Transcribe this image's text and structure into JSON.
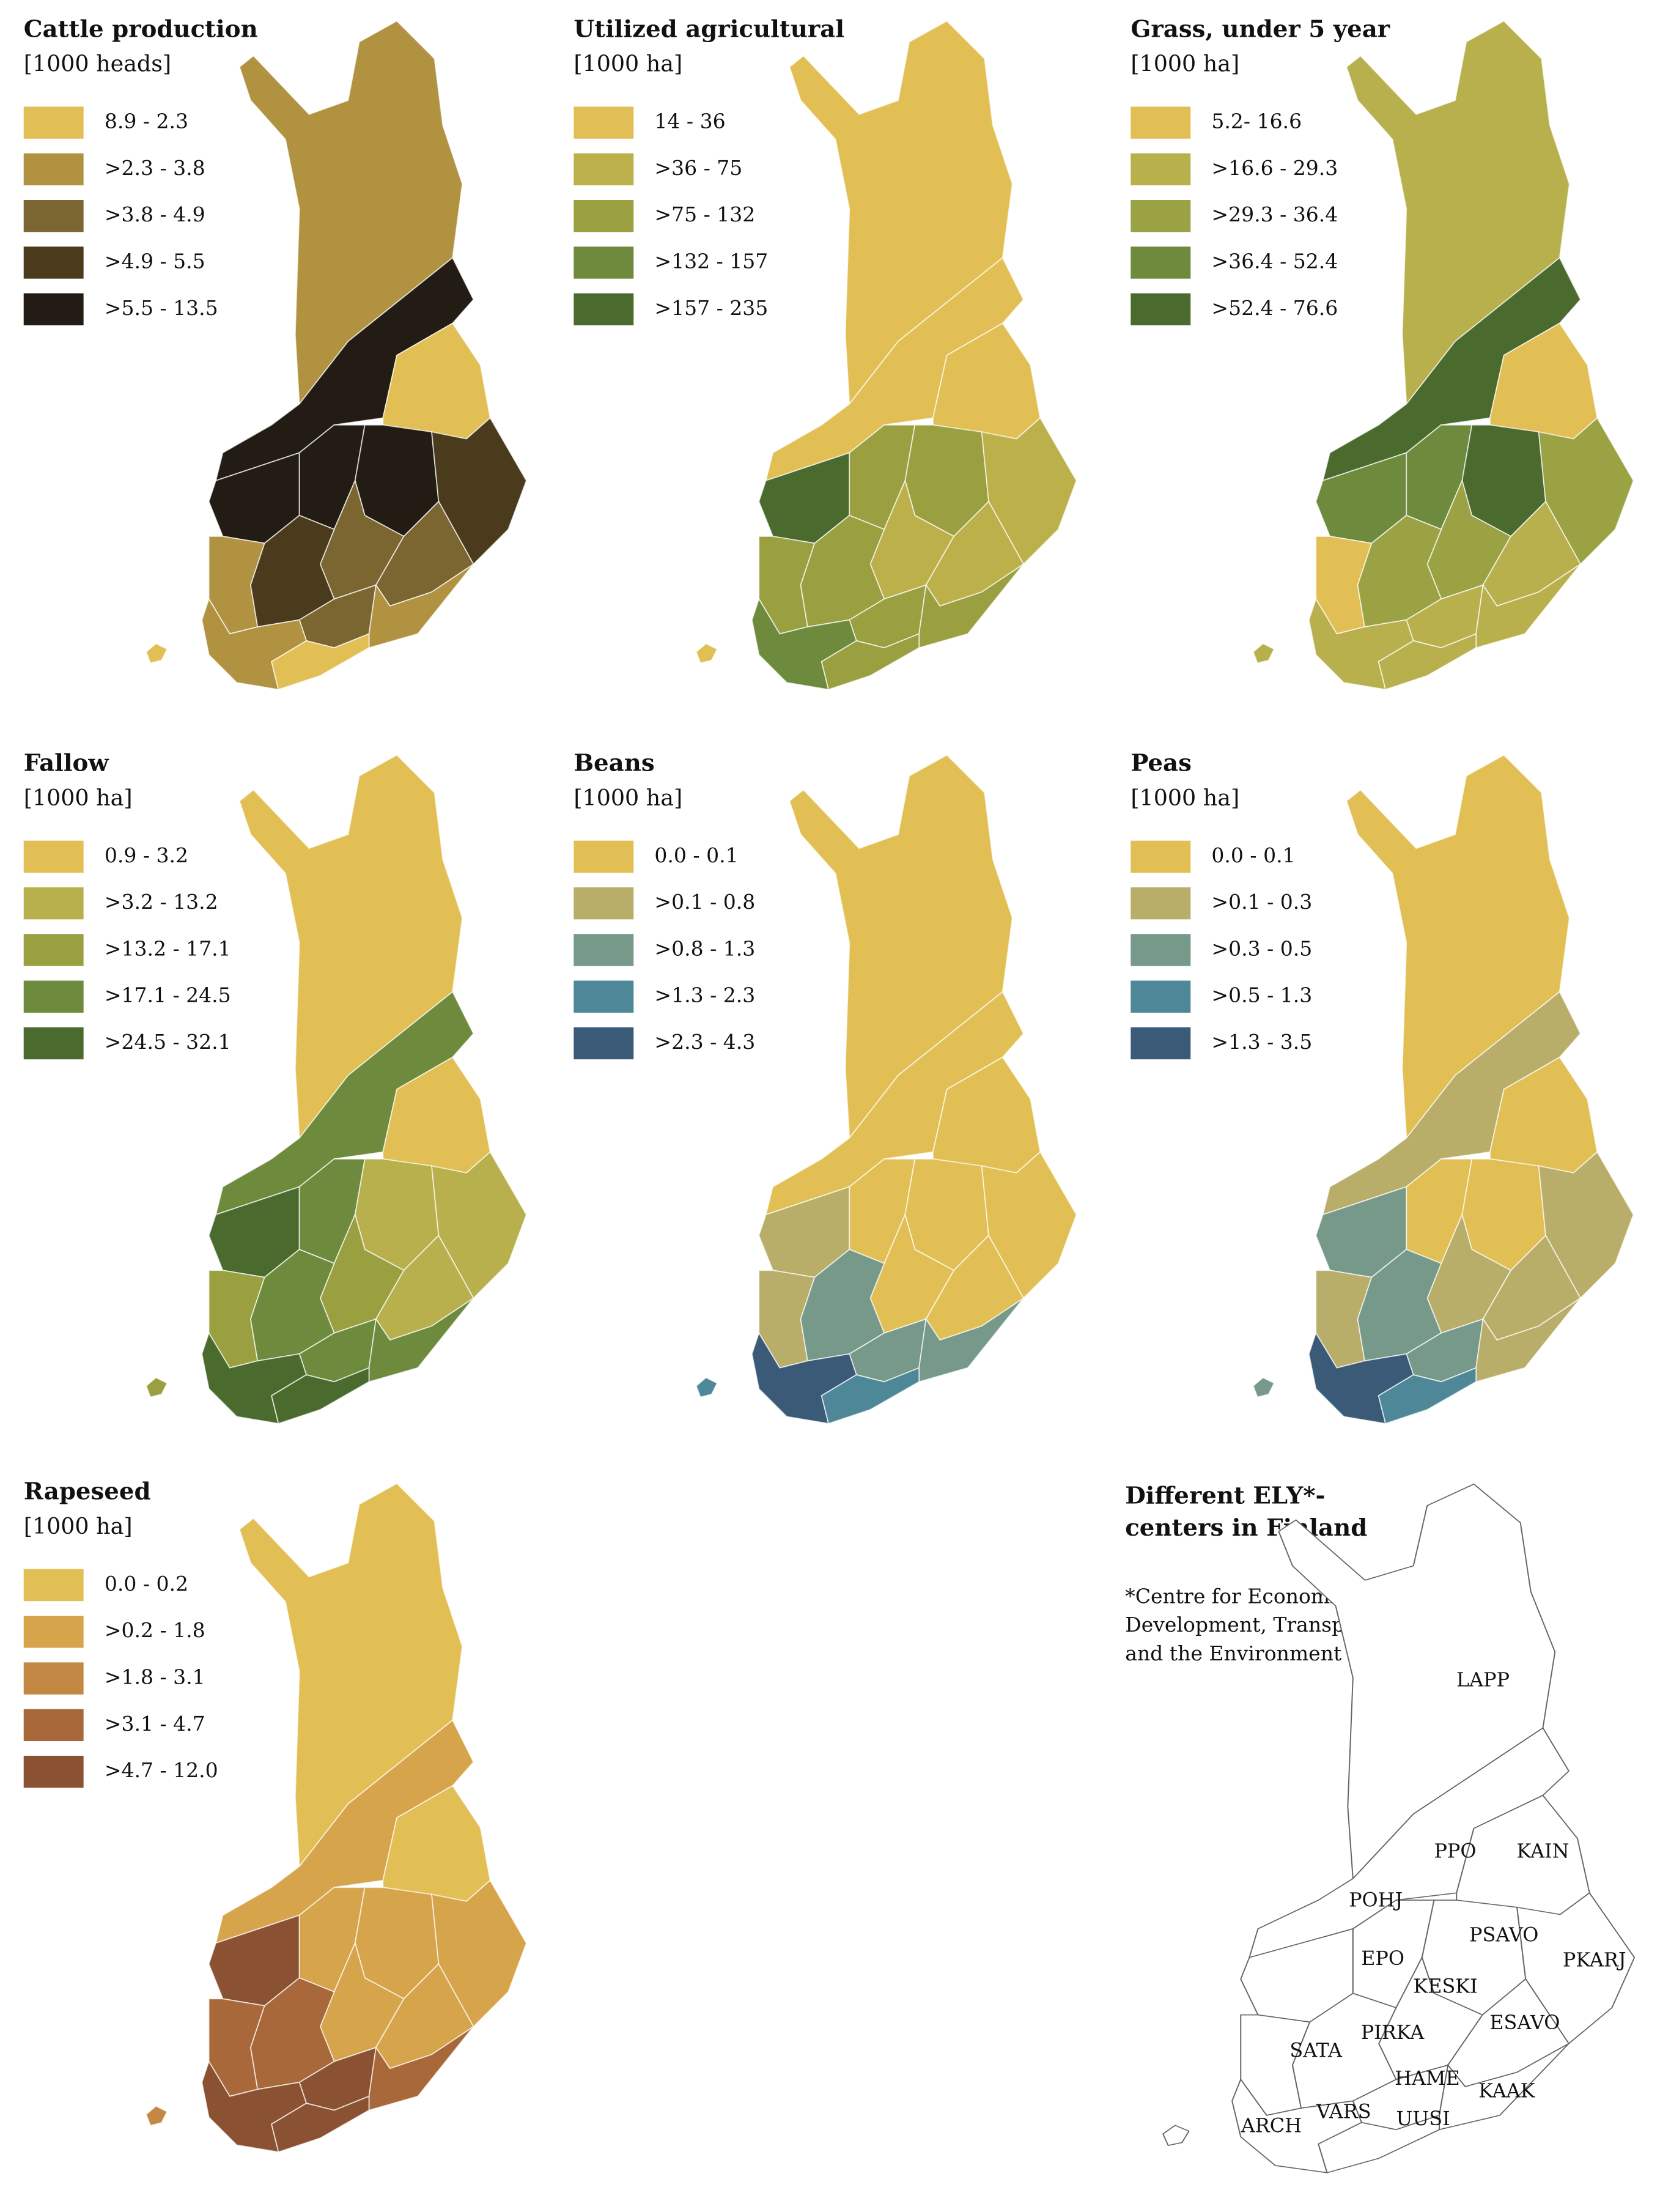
{
  "panels": [
    {
      "title": "Cattle production",
      "unit": "[1000 heads]",
      "legend": [
        {
          "label": "8.9 - 2.3",
          "color": "#e2bf55"
        },
        {
          "label": ">2.3 - 3.8",
          "color": "#b09240"
        },
        {
          "label": ">3.8 - 4.9",
          "color": "#7b6530"
        },
        {
          "label": ">4.9 - 5.5",
          "color": "#4a3b1c"
        },
        {
          "label": ">5.5 - 13.5",
          "color": "#231c14"
        }
      ],
      "fills": [
        "#b09240",
        "#231c14",
        "#e2bf55",
        "#231c14",
        "#231c14",
        "#231c14",
        "#4a3b1c",
        "#7b6530",
        "#7b6530",
        "#b09240",
        "#4a3b1c",
        "#7b6530",
        "#b09240",
        "#b09240",
        "#e2bf55",
        "#e2bf55"
      ]
    },
    {
      "title": "Utilized agricultural",
      "unit": "[1000 ha]",
      "legend": [
        {
          "label": "14 - 36",
          "color": "#e2bf55"
        },
        {
          "label": ">36 - 75",
          "color": "#bcb04a"
        },
        {
          "label": ">75 - 132",
          "color": "#9a9f40"
        },
        {
          "label": ">132 - 157",
          "color": "#6e8a3c"
        },
        {
          "label": ">157 - 235",
          "color": "#4a6a2e"
        }
      ],
      "fills": [
        "#e2bf55",
        "#e2bf55",
        "#e2bf55",
        "#4a6a2e",
        "#9a9f40",
        "#9a9f40",
        "#bcb04a",
        "#bcb04a",
        "#bcb04a",
        "#9a9f40",
        "#9a9f40",
        "#9a9f40",
        "#9a9f40",
        "#6e8a3c",
        "#9a9f40",
        "#e2bf55"
      ]
    },
    {
      "title": "Grass, under 5 year",
      "unit": "[1000 ha]",
      "legend": [
        {
          "label": "5.2- 16.6",
          "color": "#e2bf55"
        },
        {
          "label": ">16.6 - 29.3",
          "color": "#b8b04c"
        },
        {
          "label": ">29.3 - 36.4",
          "color": "#9aa244"
        },
        {
          "label": ">36.4 - 52.4",
          "color": "#6e8a3c"
        },
        {
          "label": ">52.4 - 76.6",
          "color": "#4a6a2e"
        }
      ],
      "fills": [
        "#b8b04c",
        "#4a6a2e",
        "#e2bf55",
        "#6e8a3c",
        "#6e8a3c",
        "#4a6a2e",
        "#9aa244",
        "#9aa244",
        "#b8b04c",
        "#e2bf55",
        "#9aa244",
        "#b8b04c",
        "#b8b04c",
        "#b8b04c",
        "#b8b04c",
        "#b8b04c"
      ]
    },
    {
      "title": "Fallow",
      "unit": "[1000 ha]",
      "legend": [
        {
          "label": "0.9 - 3.2",
          "color": "#e2bf55"
        },
        {
          "label": ">3.2 - 13.2",
          "color": "#b8b04c"
        },
        {
          "label": ">13.2 - 17.1",
          "color": "#9a9f40"
        },
        {
          "label": ">17.1 - 24.5",
          "color": "#6e8a3c"
        },
        {
          "label": ">24.5 - 32.1",
          "color": "#4a6a2e"
        }
      ],
      "fills": [
        "#e2bf55",
        "#6e8a3c",
        "#e2bf55",
        "#4a6a2e",
        "#6e8a3c",
        "#b8b04c",
        "#b8b04c",
        "#9a9f40",
        "#b8b04c",
        "#9a9f40",
        "#6e8a3c",
        "#6e8a3c",
        "#6e8a3c",
        "#4a6a2e",
        "#4a6a2e",
        "#9a9f40"
      ]
    },
    {
      "title": "Beans",
      "unit": "[1000 ha]",
      "legend": [
        {
          "label": "0.0 - 0.1",
          "color": "#e2bf55"
        },
        {
          "label": ">0.1 - 0.8",
          "color": "#b8ae6a"
        },
        {
          "label": ">0.8 - 1.3",
          "color": "#76998a"
        },
        {
          "label": ">1.3 - 2.3",
          "color": "#4e8898"
        },
        {
          "label": ">2.3 - 4.3",
          "color": "#3a5a78"
        }
      ],
      "fills": [
        "#e2bf55",
        "#e2bf55",
        "#e2bf55",
        "#b8ae6a",
        "#e2bf55",
        "#e2bf55",
        "#e2bf55",
        "#e2bf55",
        "#e2bf55",
        "#b8ae6a",
        "#76998a",
        "#76998a",
        "#76998a",
        "#3a5a78",
        "#4e8898",
        "#4e8898"
      ]
    },
    {
      "title": "Peas",
      "unit": "[1000 ha]",
      "legend": [
        {
          "label": "0.0 - 0.1",
          "color": "#e2bf55"
        },
        {
          "label": ">0.1 - 0.3",
          "color": "#b8ae6a"
        },
        {
          "label": ">0.3 - 0.5",
          "color": "#76998a"
        },
        {
          "label": ">0.5 - 1.3",
          "color": "#4e8898"
        },
        {
          "label": ">1.3 - 3.5",
          "color": "#3a5a78"
        }
      ],
      "fills": [
        "#e2bf55",
        "#b8ae6a",
        "#e2bf55",
        "#76998a",
        "#e2bf55",
        "#e2bf55",
        "#b8ae6a",
        "#b8ae6a",
        "#b8ae6a",
        "#b8ae6a",
        "#76998a",
        "#76998a",
        "#b8ae6a",
        "#3a5a78",
        "#4e8898",
        "#76998a"
      ]
    },
    {
      "title": "Rapeseed",
      "unit": "[1000 ha]",
      "legend": [
        {
          "label": "0.0 - 0.2",
          "color": "#e2bf55"
        },
        {
          "label": ">0.2 - 1.8",
          "color": "#d6a44a"
        },
        {
          "label": ">1.8 - 3.1",
          "color": "#c38844"
        },
        {
          "label": ">3.1 - 4.7",
          "color": "#a8683a"
        },
        {
          "label": ">4.7 - 12.0",
          "color": "#8a5232"
        }
      ],
      "fills": [
        "#e2bf55",
        "#d6a44a",
        "#e2bf55",
        "#8a5232",
        "#d6a44a",
        "#d6a44a",
        "#d6a44a",
        "#d6a44a",
        "#d6a44a",
        "#a8683a",
        "#a8683a",
        "#8a5232",
        "#a8683a",
        "#8a5232",
        "#8a5232",
        "#c38844"
      ]
    }
  ],
  "ely": {
    "title": [
      "Different ELY*-",
      "centers in Finland"
    ],
    "note": [
      "*Centre for Economic",
      "Development, Transport",
      "and the Environment"
    ],
    "regions": [
      "LAPP",
      "PPO",
      "KAIN",
      "POHJ",
      "EPO",
      "PSAVO",
      "PKARJ",
      "KESKI",
      "ESAVO",
      "SATA",
      "PIRKA",
      "HAME",
      "KAAK",
      "VARS",
      "UUSI",
      "ARCH"
    ]
  }
}
